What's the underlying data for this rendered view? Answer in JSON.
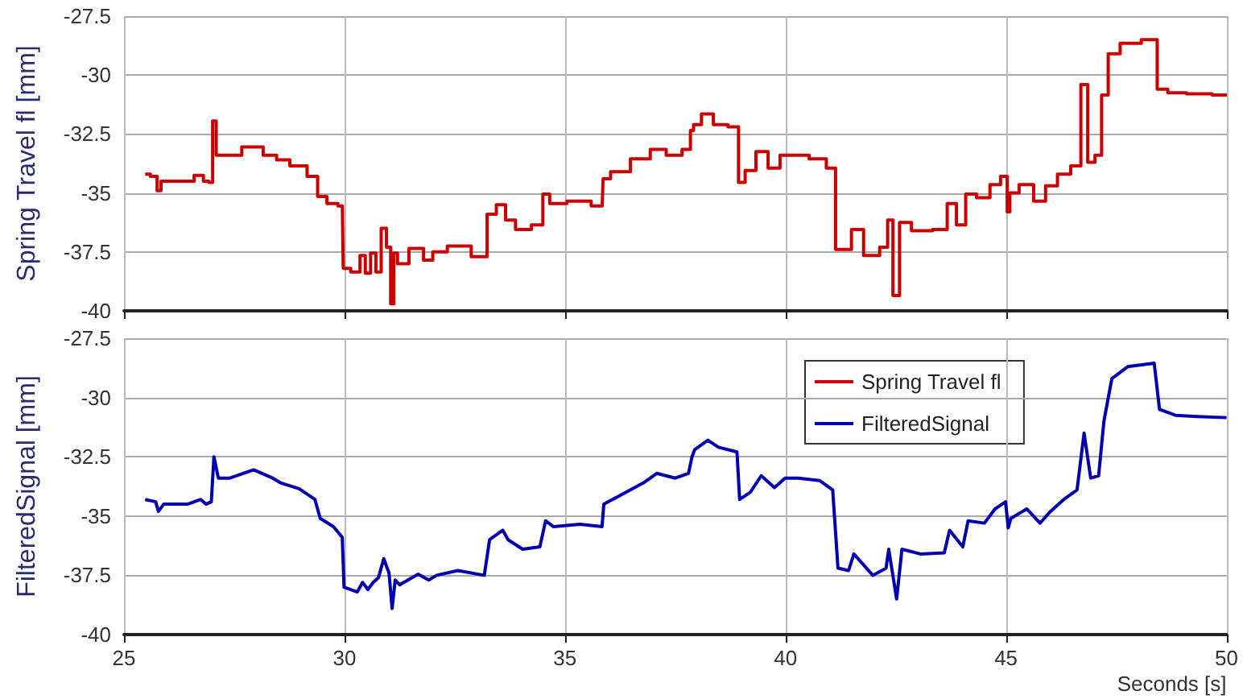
{
  "chart_data": [
    {
      "type": "step",
      "ylabel": "Spring Travel fl [mm]",
      "xlim": [
        25,
        50
      ],
      "xticks": [
        25,
        30,
        35,
        40,
        45,
        50
      ],
      "ylim": [
        -40,
        -27.5
      ],
      "yticks": [
        -40,
        -37.5,
        -35,
        -32.5,
        -30,
        -27.5
      ],
      "grid": true,
      "tick_labels": "y",
      "legend": "bottom right",
      "series": [
        {
          "name": "Spring Travel fl",
          "color": "#cc0000",
          "x": [
            25.48,
            25.72,
            25.78,
            25.9,
            26.44,
            26.74,
            26.86,
            26.98,
            27.04,
            27.14,
            27.4,
            27.94,
            28.37,
            28.55,
            28.97,
            29.33,
            29.45,
            29.75,
            29.95,
            29.99,
            30.29,
            30.41,
            30.53,
            30.65,
            30.77,
            30.89,
            31.01,
            31.08,
            31.15,
            31.25,
            31.67,
            31.91,
            32.09,
            32.57,
            33.17,
            33.29,
            33.59,
            33.71,
            34.04,
            34.43,
            34.56,
            34.74,
            35.34,
            35.84,
            35.88,
            36.18,
            36.78,
            37.08,
            37.5,
            37.8,
            37.88,
            37.94,
            38.24,
            38.48,
            38.9,
            38.96,
            39.2,
            39.45,
            39.75,
            39.99,
            40.29,
            40.77,
            41.07,
            41.19,
            41.43,
            41.55,
            41.98,
            42.28,
            42.34,
            42.52,
            42.64,
            43.06,
            43.6,
            43.72,
            44.02,
            44.14,
            44.51,
            44.75,
            44.99,
            45.05,
            45.11,
            45.47,
            45.77,
            46.01,
            46.31,
            46.61,
            46.77,
            46.92,
            47.1,
            47.22,
            47.4,
            47.76,
            48.36,
            48.48,
            48.84,
            49.33,
            50
          ],
          "values": [
            -34.2,
            -34.3,
            -34.9,
            -34.5,
            -34.5,
            -34.25,
            -34.5,
            -34.55,
            -31.95,
            -33.4,
            -33.4,
            -33.05,
            -33.4,
            -33.6,
            -33.85,
            -34.3,
            -35.15,
            -35.45,
            -35.55,
            -38.2,
            -38.35,
            -37.65,
            -38.4,
            -37.55,
            -38.35,
            -36.5,
            -37.3,
            -39.7,
            -37.55,
            -38,
            -37.35,
            -37.85,
            -37.5,
            -37.25,
            -37.7,
            -35.9,
            -35.5,
            -36.15,
            -36.55,
            -36.35,
            -35.05,
            -35.45,
            -35.35,
            -35.55,
            -34.4,
            -34.1,
            -33.55,
            -33.15,
            -33.4,
            -33.15,
            -32.35,
            -32.1,
            -31.65,
            -32.1,
            -32.2,
            -34.55,
            -34.05,
            -33.25,
            -33.95,
            -33.4,
            -33.4,
            -33.55,
            -33.95,
            -37.4,
            -37.4,
            -36.55,
            -37.65,
            -37.3,
            -36.15,
            -39.35,
            -36.25,
            -36.6,
            -36.55,
            -35.45,
            -36.35,
            -35.05,
            -35.2,
            -34.65,
            -34.3,
            -35.8,
            -35,
            -34.65,
            -35.35,
            -34.7,
            -34.2,
            -33.85,
            -30.4,
            -33.7,
            -33.4,
            -30.85,
            -29.1,
            -28.65,
            -28.5,
            -30.6,
            -30.75,
            -30.8,
            -30.85
          ]
        }
      ]
    },
    {
      "type": "line",
      "ylabel": "FilteredSignal [mm]",
      "xlabel": "Seconds [s]",
      "xlim": [
        25,
        50
      ],
      "xticks": [
        25,
        30,
        35,
        40,
        45,
        50
      ],
      "ylim": [
        -40,
        -27.5
      ],
      "yticks": [
        -40,
        -37.5,
        -35,
        -32.5,
        -30,
        -27.5
      ],
      "grid": true,
      "legend": "top right",
      "series": [
        {
          "name": "FilteredSignal",
          "color": "#0000b0",
          "x": [
            25.48,
            25.72,
            25.78,
            25.9,
            26.44,
            26.74,
            26.86,
            26.98,
            27.04,
            27.14,
            27.4,
            27.94,
            28.37,
            28.55,
            28.97,
            29.33,
            29.45,
            29.75,
            29.95,
            29.99,
            30.29,
            30.41,
            30.53,
            30.65,
            30.77,
            30.89,
            31.01,
            31.08,
            31.15,
            31.25,
            31.67,
            31.91,
            32.09,
            32.57,
            33.17,
            33.29,
            33.59,
            33.71,
            34.04,
            34.43,
            34.56,
            34.74,
            35.34,
            35.84,
            35.88,
            36.18,
            36.78,
            37.08,
            37.5,
            37.8,
            37.88,
            37.94,
            38.24,
            38.48,
            38.9,
            38.96,
            39.2,
            39.45,
            39.75,
            39.99,
            40.29,
            40.77,
            41.07,
            41.19,
            41.43,
            41.55,
            41.98,
            42.28,
            42.34,
            42.52,
            42.64,
            43.06,
            43.6,
            43.72,
            44.02,
            44.14,
            44.51,
            44.75,
            44.99,
            45.05,
            45.11,
            45.47,
            45.77,
            46.01,
            46.31,
            46.61,
            46.77,
            46.92,
            47.1,
            47.22,
            47.4,
            47.76,
            48.36,
            48.48,
            48.84,
            49.33,
            50
          ],
          "values": [
            -34.3,
            -34.4,
            -34.8,
            -34.5,
            -34.5,
            -34.3,
            -34.5,
            -34.4,
            -32.5,
            -33.4,
            -33.4,
            -33.05,
            -33.4,
            -33.6,
            -33.85,
            -34.3,
            -35.1,
            -35.45,
            -35.9,
            -38,
            -38.2,
            -37.8,
            -38.1,
            -37.8,
            -37.6,
            -36.8,
            -37.4,
            -38.9,
            -37.7,
            -37.9,
            -37.45,
            -37.7,
            -37.5,
            -37.3,
            -37.5,
            -36,
            -35.6,
            -36,
            -36.4,
            -36.3,
            -35.2,
            -35.45,
            -35.35,
            -35.45,
            -34.5,
            -34.2,
            -33.6,
            -33.2,
            -33.4,
            -33.2,
            -32.5,
            -32.2,
            -31.8,
            -32.1,
            -32.3,
            -34.3,
            -34,
            -33.3,
            -33.8,
            -33.4,
            -33.4,
            -33.5,
            -33.9,
            -37.2,
            -37.3,
            -36.6,
            -37.5,
            -37.2,
            -36.4,
            -38.5,
            -36.4,
            -36.6,
            -36.55,
            -35.6,
            -36.3,
            -35.2,
            -35.3,
            -34.7,
            -34.4,
            -35.5,
            -35.1,
            -34.7,
            -35.3,
            -34.8,
            -34.3,
            -33.9,
            -31.5,
            -33.4,
            -33.3,
            -31,
            -29.2,
            -28.7,
            -28.55,
            -30.5,
            -30.75,
            -30.8,
            -30.85
          ]
        }
      ]
    }
  ]
}
